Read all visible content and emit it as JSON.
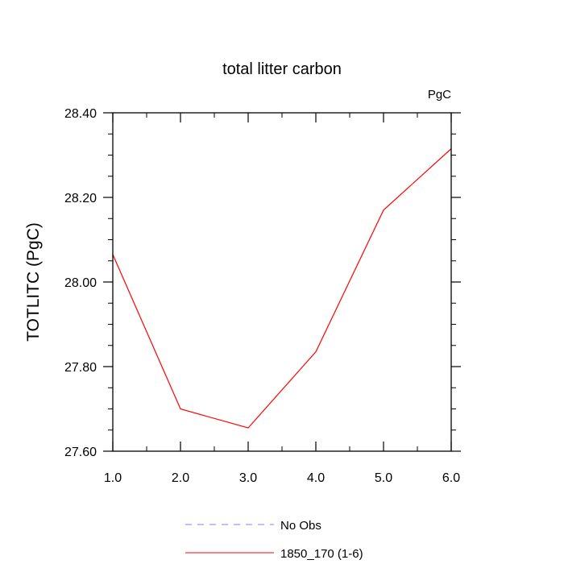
{
  "chart_data": {
    "type": "line",
    "title": "total litter carbon",
    "units_label": "PgC",
    "ylabel": "TOTLITC  (PgC)",
    "xlabel": "",
    "xlim": [
      1.0,
      6.0
    ],
    "ylim": [
      27.6,
      28.4
    ],
    "x_ticks": [
      "1.0",
      "2.0",
      "3.0",
      "4.0",
      "5.0",
      "6.0"
    ],
    "y_ticks": [
      "27.60",
      "27.80",
      "28.00",
      "28.20",
      "28.40"
    ],
    "grid": false,
    "legend_position": "bottom",
    "series": [
      {
        "name": "No Obs",
        "color": "#8080ff",
        "style": "dashed",
        "x": [],
        "values": []
      },
      {
        "name": "1850_170 (1-6)",
        "color": "#ff0000",
        "style": "solid",
        "x": [
          1,
          2,
          3,
          4,
          5,
          6
        ],
        "values": [
          28.065,
          27.7,
          27.655,
          27.835,
          28.17,
          28.315
        ]
      }
    ]
  }
}
